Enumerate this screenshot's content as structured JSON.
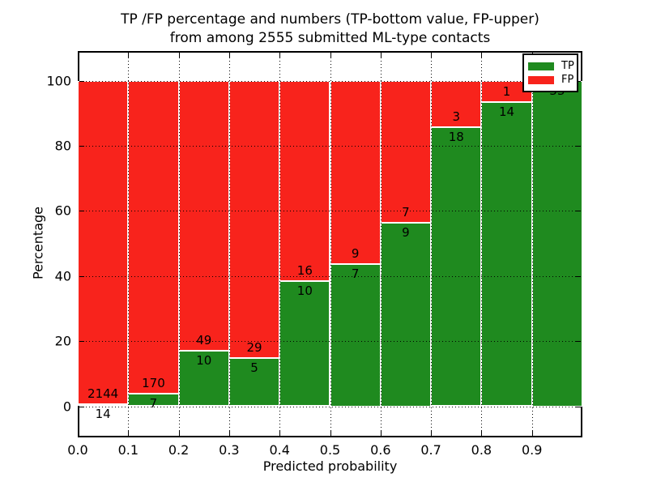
{
  "figure": {
    "title_line1": "TP /FP percentage and numbers (TP-bottom value, FP-upper)",
    "title_line2": "from among 2555 submitted ML-type contacts"
  },
  "axes": {
    "xlabel": "Predicted probability",
    "ylabel": "Percentage",
    "xtick_labels": [
      "0.0",
      "0.1",
      "0.2",
      "0.3",
      "0.4",
      "0.5",
      "0.6",
      "0.7",
      "0.8",
      "0.9"
    ],
    "ytick_values": [
      0,
      20,
      40,
      60,
      80,
      100
    ]
  },
  "legend": {
    "items": [
      {
        "label": "TP",
        "color": "#1f8a1f"
      },
      {
        "label": "FP",
        "color": "#f8231c"
      }
    ]
  },
  "chart_data": {
    "type": "bar",
    "stacked": true,
    "normalized_to_percent": true,
    "title": "TP /FP percentage and numbers (TP-bottom value, FP-upper) from among 2555 submitted ML-type contacts",
    "xlabel": "Predicted probability",
    "ylabel": "Percentage",
    "total_contacts": 2555,
    "bin_edges": [
      0.0,
      0.1,
      0.2,
      0.3,
      0.4,
      0.5,
      0.6,
      0.7,
      0.8,
      0.9,
      1.0
    ],
    "categories": [
      "0.0-0.1",
      "0.1-0.2",
      "0.2-0.3",
      "0.3-0.4",
      "0.4-0.5",
      "0.5-0.6",
      "0.6-0.7",
      "0.7-0.8",
      "0.8-0.9",
      "0.9-1.0"
    ],
    "series": [
      {
        "name": "TP",
        "color": "#1f8a1f",
        "values": [
          14,
          7,
          10,
          5,
          10,
          7,
          9,
          18,
          14,
          33
        ]
      },
      {
        "name": "FP",
        "color": "#f8231c",
        "values": [
          2144,
          170,
          49,
          29,
          16,
          9,
          7,
          3,
          1,
          0
        ]
      }
    ],
    "ylim": [
      0,
      100
    ],
    "grid": true,
    "grid_style": "dotted",
    "legend_position": "upper right"
  }
}
